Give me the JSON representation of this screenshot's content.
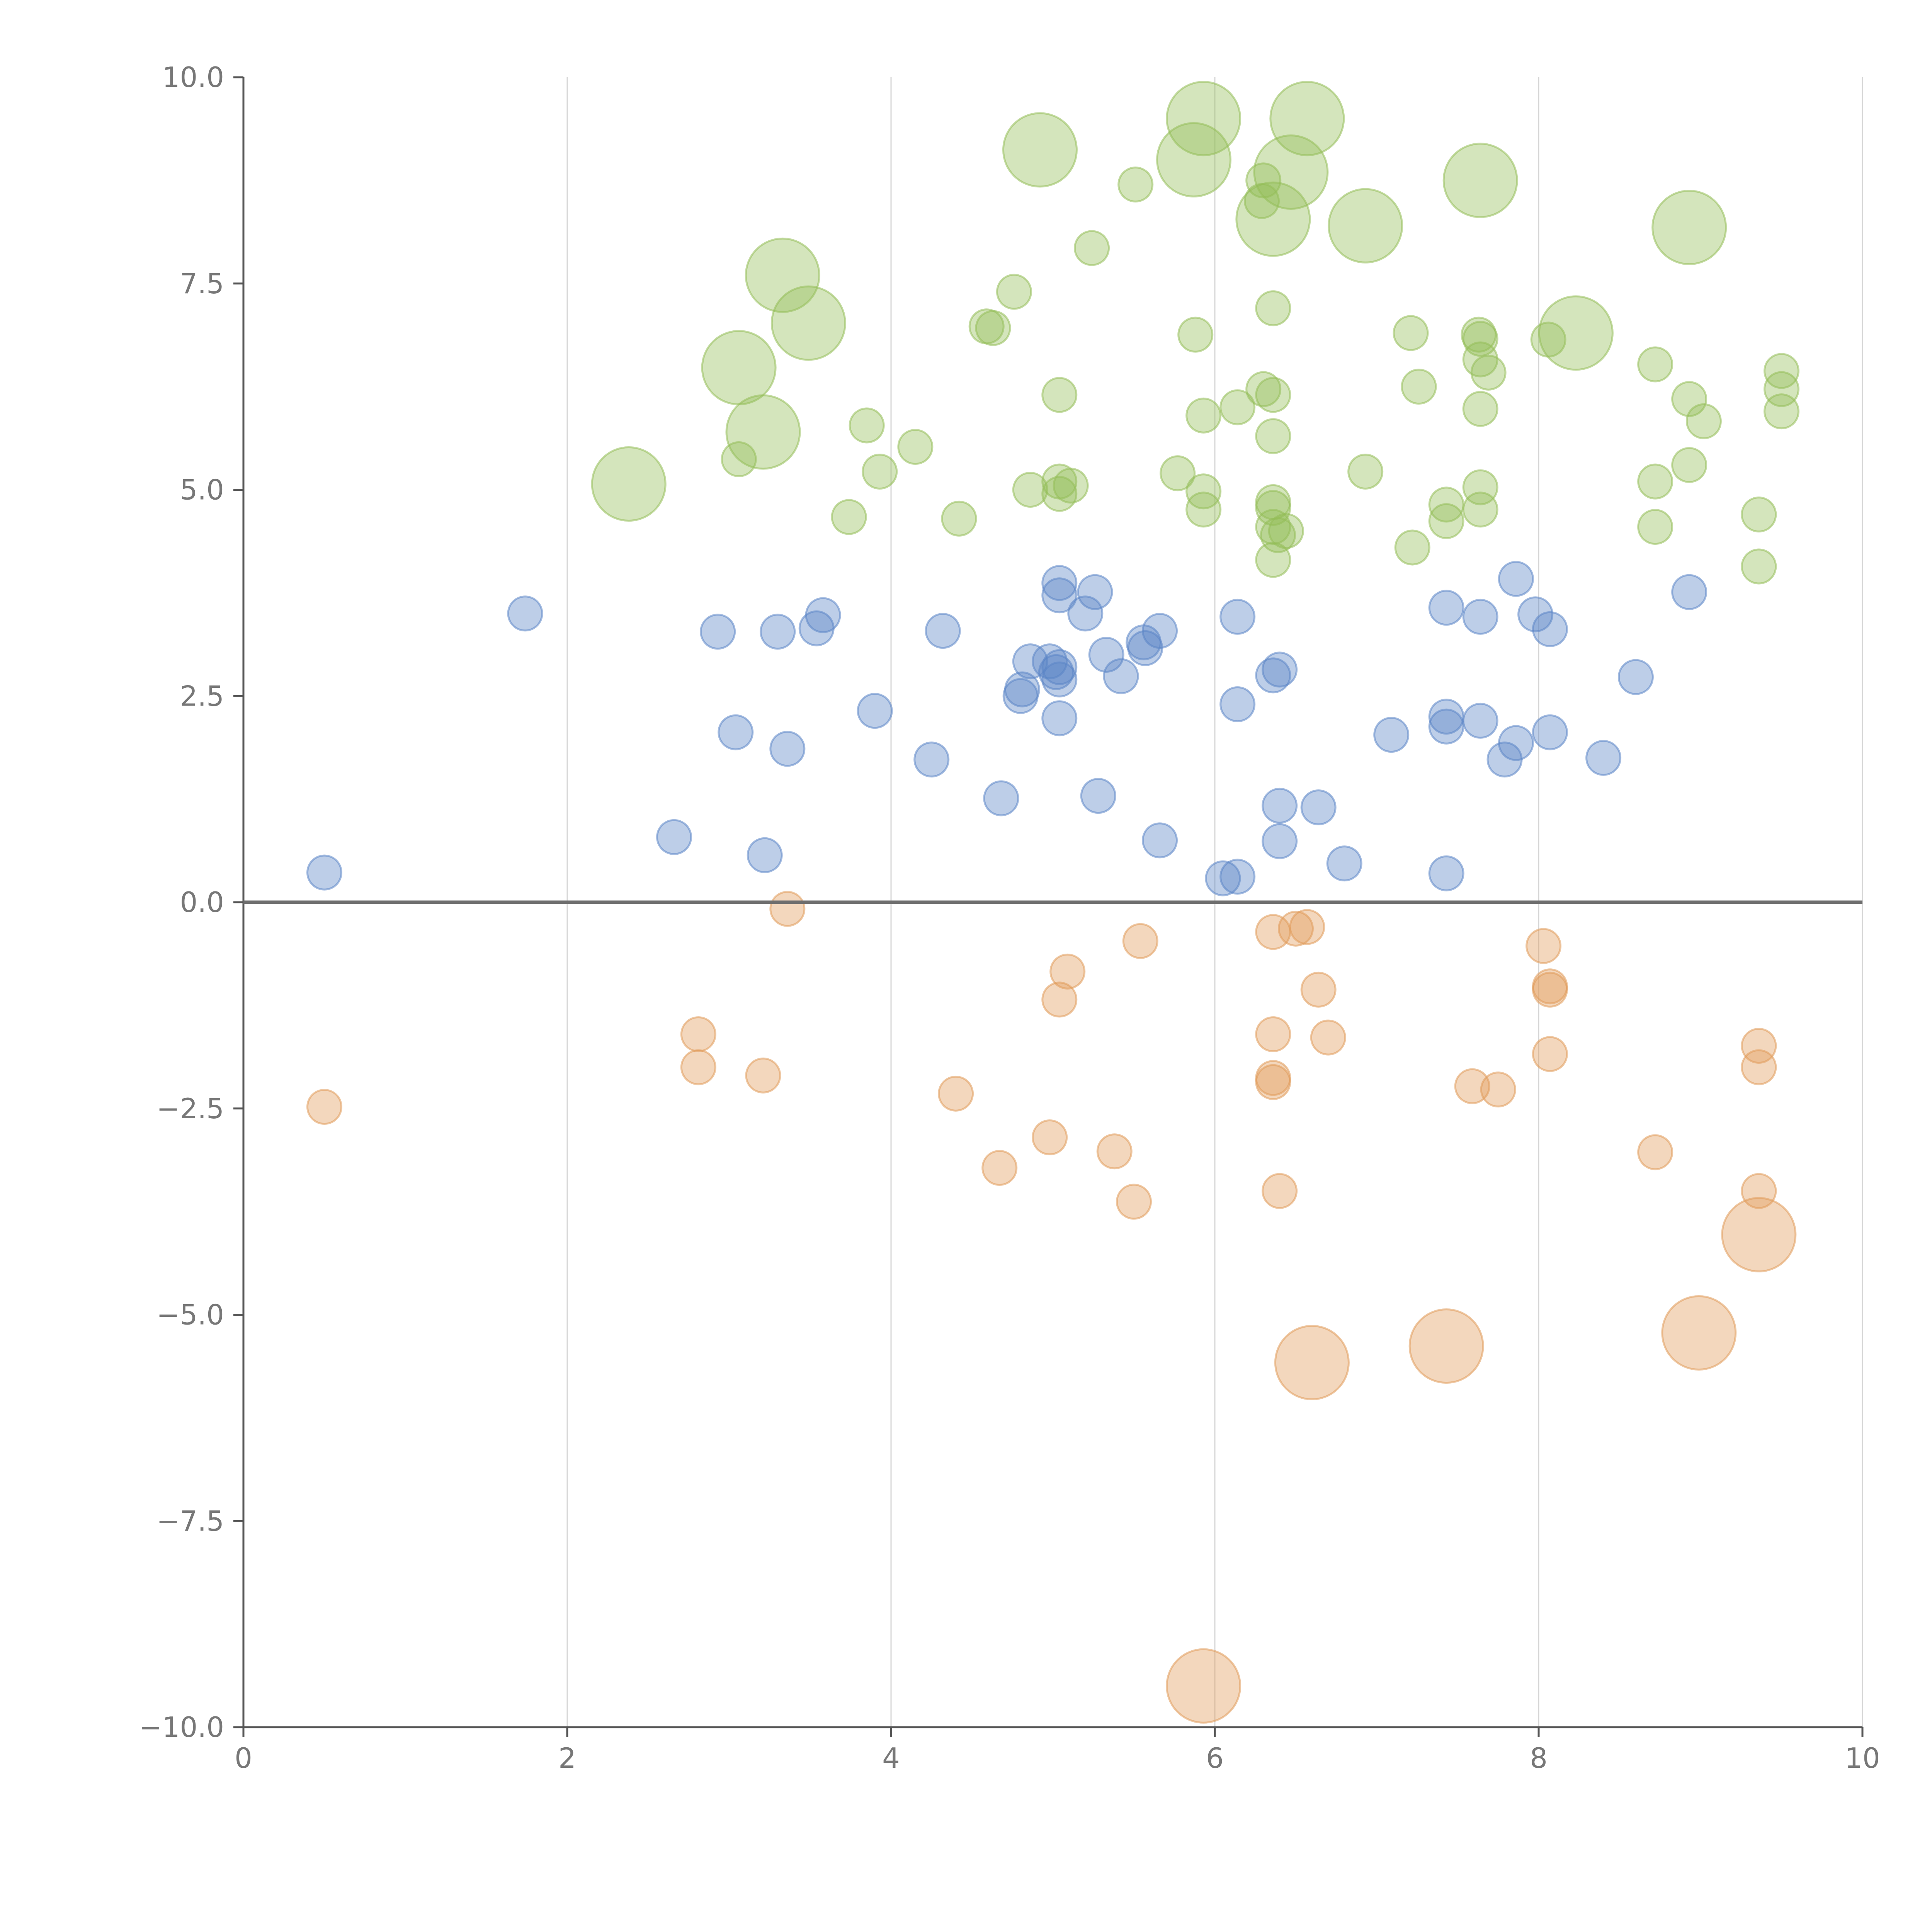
{
  "chart_data": {
    "type": "scatter",
    "subtype": "bubble",
    "title": "",
    "xlabel": "",
    "ylabel": "",
    "xlim": [
      0,
      10
    ],
    "ylim": [
      -10,
      10
    ],
    "x_ticks": [
      0,
      2,
      4,
      6,
      8,
      10
    ],
    "x_tick_labels": [
      "0",
      "2",
      "4",
      "6",
      "8",
      "10"
    ],
    "y_ticks": [
      10,
      7.5,
      5,
      2.5,
      0,
      -2.5,
      -5,
      -7.5,
      -10
    ],
    "y_tick_labels": [
      "10.0",
      "7.5",
      "5.0",
      "2.5",
      "0.0",
      "−2.5",
      "−5.0",
      "−7.5",
      "−10.0"
    ],
    "vertical_grid": true,
    "horizontal_reference_line": 0,
    "marker_opacity": 0.4,
    "series": [
      {
        "name": "green",
        "color": "#93bd58",
        "points": [
          {
            "x": 5.93,
            "y": 9.5,
            "s": 3
          },
          {
            "x": 6.57,
            "y": 9.5,
            "s": 3
          },
          {
            "x": 4.92,
            "y": 9.12,
            "s": 3
          },
          {
            "x": 5.87,
            "y": 9.0,
            "s": 3
          },
          {
            "x": 5.51,
            "y": 8.7,
            "s": 1
          },
          {
            "x": 6.47,
            "y": 8.85,
            "s": 3
          },
          {
            "x": 6.3,
            "y": 8.75,
            "s": 1
          },
          {
            "x": 6.29,
            "y": 8.5,
            "s": 1
          },
          {
            "x": 7.64,
            "y": 8.75,
            "s": 3
          },
          {
            "x": 6.36,
            "y": 8.28,
            "s": 3
          },
          {
            "x": 6.93,
            "y": 8.2,
            "s": 3
          },
          {
            "x": 8.93,
            "y": 8.18,
            "s": 3
          },
          {
            "x": 5.24,
            "y": 7.93,
            "s": 1
          },
          {
            "x": 3.33,
            "y": 7.6,
            "s": 3
          },
          {
            "x": 4.76,
            "y": 7.4,
            "s": 1
          },
          {
            "x": 6.36,
            "y": 7.2,
            "s": 1
          },
          {
            "x": 3.49,
            "y": 7.02,
            "s": 3
          },
          {
            "x": 4.59,
            "y": 6.98,
            "s": 1
          },
          {
            "x": 4.63,
            "y": 6.96,
            "s": 1
          },
          {
            "x": 5.88,
            "y": 6.88,
            "s": 1
          },
          {
            "x": 7.21,
            "y": 6.9,
            "s": 1
          },
          {
            "x": 7.63,
            "y": 6.88,
            "s": 1
          },
          {
            "x": 7.64,
            "y": 6.83,
            "s": 1
          },
          {
            "x": 8.23,
            "y": 6.9,
            "s": 3
          },
          {
            "x": 8.06,
            "y": 6.82,
            "s": 1
          },
          {
            "x": 3.06,
            "y": 6.48,
            "s": 3
          },
          {
            "x": 7.64,
            "y": 6.58,
            "s": 1
          },
          {
            "x": 7.69,
            "y": 6.42,
            "s": 1
          },
          {
            "x": 8.72,
            "y": 6.52,
            "s": 1
          },
          {
            "x": 9.5,
            "y": 6.44,
            "s": 1
          },
          {
            "x": 9.5,
            "y": 6.22,
            "s": 1
          },
          {
            "x": 7.26,
            "y": 6.25,
            "s": 1
          },
          {
            "x": 6.3,
            "y": 6.22,
            "s": 1
          },
          {
            "x": 6.36,
            "y": 6.15,
            "s": 1
          },
          {
            "x": 5.04,
            "y": 6.15,
            "s": 1
          },
          {
            "x": 8.93,
            "y": 6.1,
            "s": 1
          },
          {
            "x": 7.64,
            "y": 5.98,
            "s": 1
          },
          {
            "x": 6.14,
            "y": 6.0,
            "s": 1
          },
          {
            "x": 9.5,
            "y": 5.95,
            "s": 1
          },
          {
            "x": 5.93,
            "y": 5.9,
            "s": 1
          },
          {
            "x": 9.02,
            "y": 5.83,
            "s": 1
          },
          {
            "x": 3.85,
            "y": 5.78,
            "s": 1
          },
          {
            "x": 3.21,
            "y": 5.7,
            "s": 3
          },
          {
            "x": 6.36,
            "y": 5.65,
            "s": 1
          },
          {
            "x": 4.15,
            "y": 5.52,
            "s": 1
          },
          {
            "x": 3.06,
            "y": 5.37,
            "s": 1
          },
          {
            "x": 8.93,
            "y": 5.3,
            "s": 1
          },
          {
            "x": 3.93,
            "y": 5.22,
            "s": 1
          },
          {
            "x": 5.77,
            "y": 5.2,
            "s": 1
          },
          {
            "x": 6.93,
            "y": 5.22,
            "s": 1
          },
          {
            "x": 8.72,
            "y": 5.1,
            "s": 1
          },
          {
            "x": 2.38,
            "y": 5.07,
            "s": 3
          },
          {
            "x": 5.04,
            "y": 5.1,
            "s": 1
          },
          {
            "x": 5.11,
            "y": 5.05,
            "s": 1
          },
          {
            "x": 7.64,
            "y": 5.03,
            "s": 1
          },
          {
            "x": 4.86,
            "y": 5.0,
            "s": 1
          },
          {
            "x": 5.93,
            "y": 4.98,
            "s": 1
          },
          {
            "x": 5.04,
            "y": 4.95,
            "s": 1
          },
          {
            "x": 6.36,
            "y": 4.85,
            "s": 1
          },
          {
            "x": 7.43,
            "y": 4.82,
            "s": 1
          },
          {
            "x": 6.36,
            "y": 4.78,
            "s": 1
          },
          {
            "x": 5.93,
            "y": 4.76,
            "s": 1
          },
          {
            "x": 7.64,
            "y": 4.76,
            "s": 1
          },
          {
            "x": 9.36,
            "y": 4.7,
            "s": 1
          },
          {
            "x": 3.74,
            "y": 4.67,
            "s": 1
          },
          {
            "x": 4.42,
            "y": 4.65,
            "s": 1
          },
          {
            "x": 7.43,
            "y": 4.62,
            "s": 1
          },
          {
            "x": 6.36,
            "y": 4.55,
            "s": 1
          },
          {
            "x": 8.72,
            "y": 4.55,
            "s": 1
          },
          {
            "x": 6.44,
            "y": 4.5,
            "s": 1
          },
          {
            "x": 6.39,
            "y": 4.45,
            "s": 1
          },
          {
            "x": 7.22,
            "y": 4.3,
            "s": 1
          },
          {
            "x": 6.36,
            "y": 4.15,
            "s": 1
          },
          {
            "x": 9.36,
            "y": 4.07,
            "s": 1
          }
        ]
      },
      {
        "name": "blue",
        "color": "#5b85c6",
        "points": [
          {
            "x": 5.04,
            "y": 3.87,
            "s": 1
          },
          {
            "x": 7.86,
            "y": 3.92,
            "s": 1
          },
          {
            "x": 5.04,
            "y": 3.72,
            "s": 1
          },
          {
            "x": 5.26,
            "y": 3.76,
            "s": 1
          },
          {
            "x": 8.93,
            "y": 3.76,
            "s": 1
          },
          {
            "x": 7.43,
            "y": 3.57,
            "s": 1
          },
          {
            "x": 1.74,
            "y": 3.5,
            "s": 1
          },
          {
            "x": 5.2,
            "y": 3.5,
            "s": 1
          },
          {
            "x": 3.58,
            "y": 3.48,
            "s": 1
          },
          {
            "x": 6.14,
            "y": 3.46,
            "s": 1
          },
          {
            "x": 7.64,
            "y": 3.46,
            "s": 1
          },
          {
            "x": 7.98,
            "y": 3.49,
            "s": 1
          },
          {
            "x": 3.54,
            "y": 3.32,
            "s": 1
          },
          {
            "x": 2.93,
            "y": 3.28,
            "s": 1
          },
          {
            "x": 3.3,
            "y": 3.28,
            "s": 1
          },
          {
            "x": 4.32,
            "y": 3.29,
            "s": 1
          },
          {
            "x": 5.66,
            "y": 3.29,
            "s": 1
          },
          {
            "x": 8.07,
            "y": 3.31,
            "s": 1
          },
          {
            "x": 5.56,
            "y": 3.15,
            "s": 1
          },
          {
            "x": 5.57,
            "y": 3.08,
            "s": 1
          },
          {
            "x": 5.33,
            "y": 3.0,
            "s": 1
          },
          {
            "x": 4.86,
            "y": 2.92,
            "s": 1
          },
          {
            "x": 4.98,
            "y": 2.92,
            "s": 1
          },
          {
            "x": 5.04,
            "y": 2.85,
            "s": 1
          },
          {
            "x": 6.4,
            "y": 2.82,
            "s": 1
          },
          {
            "x": 5.02,
            "y": 2.79,
            "s": 1
          },
          {
            "x": 6.36,
            "y": 2.75,
            "s": 1
          },
          {
            "x": 5.42,
            "y": 2.74,
            "s": 1
          },
          {
            "x": 8.6,
            "y": 2.73,
            "s": 1
          },
          {
            "x": 5.04,
            "y": 2.7,
            "s": 1
          },
          {
            "x": 4.81,
            "y": 2.58,
            "s": 1
          },
          {
            "x": 4.8,
            "y": 2.5,
            "s": 1
          },
          {
            "x": 6.14,
            "y": 2.4,
            "s": 1
          },
          {
            "x": 3.9,
            "y": 2.32,
            "s": 1
          },
          {
            "x": 7.43,
            "y": 2.25,
            "s": 1
          },
          {
            "x": 5.04,
            "y": 2.23,
            "s": 1
          },
          {
            "x": 7.64,
            "y": 2.2,
            "s": 1
          },
          {
            "x": 7.43,
            "y": 2.13,
            "s": 1
          },
          {
            "x": 3.04,
            "y": 2.06,
            "s": 1
          },
          {
            "x": 8.07,
            "y": 2.06,
            "s": 1
          },
          {
            "x": 7.09,
            "y": 2.03,
            "s": 1
          },
          {
            "x": 7.86,
            "y": 1.93,
            "s": 1
          },
          {
            "x": 3.36,
            "y": 1.86,
            "s": 1
          },
          {
            "x": 8.4,
            "y": 1.75,
            "s": 1
          },
          {
            "x": 4.25,
            "y": 1.73,
            "s": 1
          },
          {
            "x": 7.79,
            "y": 1.73,
            "s": 1
          },
          {
            "x": 5.28,
            "y": 1.29,
            "s": 1
          },
          {
            "x": 4.68,
            "y": 1.26,
            "s": 1
          },
          {
            "x": 6.4,
            "y": 1.17,
            "s": 1
          },
          {
            "x": 6.64,
            "y": 1.15,
            "s": 1
          },
          {
            "x": 2.66,
            "y": 0.79,
            "s": 1
          },
          {
            "x": 6.4,
            "y": 0.74,
            "s": 1
          },
          {
            "x": 5.66,
            "y": 0.75,
            "s": 1
          },
          {
            "x": 3.22,
            "y": 0.57,
            "s": 1
          },
          {
            "x": 6.8,
            "y": 0.47,
            "s": 1
          },
          {
            "x": 0.5,
            "y": 0.36,
            "s": 1
          },
          {
            "x": 7.43,
            "y": 0.35,
            "s": 1
          },
          {
            "x": 6.05,
            "y": 0.29,
            "s": 1
          },
          {
            "x": 6.14,
            "y": 0.31,
            "s": 1
          }
        ]
      },
      {
        "name": "orange",
        "color": "#e09a5a",
        "points": [
          {
            "x": 3.36,
            "y": -0.08,
            "s": 1
          },
          {
            "x": 6.57,
            "y": -0.3,
            "s": 1
          },
          {
            "x": 6.5,
            "y": -0.32,
            "s": 1
          },
          {
            "x": 6.36,
            "y": -0.36,
            "s": 1
          },
          {
            "x": 5.54,
            "y": -0.47,
            "s": 1
          },
          {
            "x": 8.03,
            "y": -0.53,
            "s": 1
          },
          {
            "x": 5.09,
            "y": -0.84,
            "s": 1
          },
          {
            "x": 8.07,
            "y": -1.02,
            "s": 1
          },
          {
            "x": 8.07,
            "y": -1.06,
            "s": 1
          },
          {
            "x": 6.64,
            "y": -1.06,
            "s": 1
          },
          {
            "x": 5.04,
            "y": -1.18,
            "s": 1
          },
          {
            "x": 2.81,
            "y": -1.6,
            "s": 1
          },
          {
            "x": 6.36,
            "y": -1.6,
            "s": 1
          },
          {
            "x": 6.7,
            "y": -1.64,
            "s": 1
          },
          {
            "x": 9.36,
            "y": -1.74,
            "s": 1
          },
          {
            "x": 8.07,
            "y": -1.84,
            "s": 1
          },
          {
            "x": 9.36,
            "y": -2.0,
            "s": 1
          },
          {
            "x": 2.81,
            "y": -2.0,
            "s": 1
          },
          {
            "x": 3.21,
            "y": -2.1,
            "s": 1
          },
          {
            "x": 6.36,
            "y": -2.13,
            "s": 1
          },
          {
            "x": 6.36,
            "y": -2.18,
            "s": 1
          },
          {
            "x": 7.59,
            "y": -2.23,
            "s": 1
          },
          {
            "x": 7.75,
            "y": -2.27,
            "s": 1
          },
          {
            "x": 4.4,
            "y": -2.32,
            "s": 1
          },
          {
            "x": 0.5,
            "y": -2.48,
            "s": 1
          },
          {
            "x": 4.98,
            "y": -2.85,
            "s": 1
          },
          {
            "x": 5.38,
            "y": -3.02,
            "s": 1
          },
          {
            "x": 8.72,
            "y": -3.03,
            "s": 1
          },
          {
            "x": 4.67,
            "y": -3.22,
            "s": 1
          },
          {
            "x": 6.4,
            "y": -3.5,
            "s": 1
          },
          {
            "x": 9.36,
            "y": -3.5,
            "s": 1
          },
          {
            "x": 5.5,
            "y": -3.63,
            "s": 1
          },
          {
            "x": 9.36,
            "y": -4.03,
            "s": 3
          },
          {
            "x": 8.99,
            "y": -5.22,
            "s": 3
          },
          {
            "x": 7.43,
            "y": -5.38,
            "s": 3
          },
          {
            "x": 6.6,
            "y": -5.58,
            "s": 3
          },
          {
            "x": 5.93,
            "y": -9.5,
            "s": 3
          }
        ]
      }
    ]
  }
}
